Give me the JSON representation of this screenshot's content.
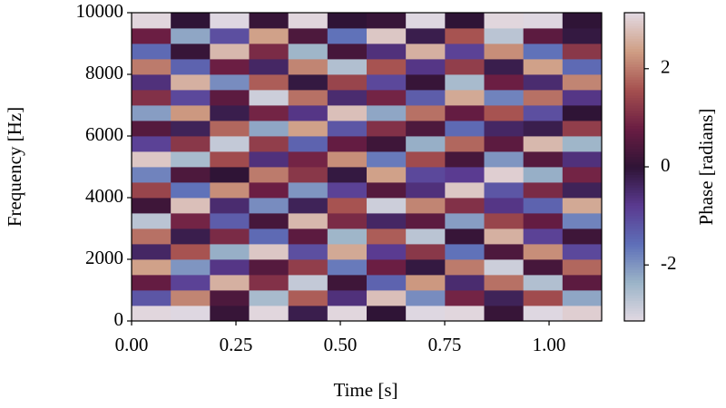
{
  "chart_data": {
    "type": "heatmap",
    "xlabel": "Time [s]",
    "ylabel": "Frequency [Hz]",
    "colorbar_label": "Phase [radians]",
    "xlim": [
      0,
      1.126
    ],
    "xticks": [
      {
        "value": 0,
        "label": "0.00"
      },
      {
        "value": 0.25,
        "label": "0.25"
      },
      {
        "value": 0.5,
        "label": "0.50"
      },
      {
        "value": 0.75,
        "label": "0.75"
      },
      {
        "value": 1,
        "label": "1.00"
      }
    ],
    "ylim": [
      0,
      10000
    ],
    "yticks": [
      0,
      2000,
      4000,
      6000,
      8000,
      10000
    ],
    "clim": [
      -3.14159,
      3.14159
    ],
    "cticks": [
      {
        "value": -2,
        "label": "-2"
      },
      0,
      2
    ],
    "colormap": [
      "#e2d9e2",
      "#9bb4c8",
      "#5e6fb8",
      "#5a3a90",
      "#2f1436",
      "#6a1d43",
      "#a5504f",
      "#cf9e84",
      "#e2d9e2"
    ],
    "z": [
      [
        3.1,
        -3.1,
        0.1,
        3.1,
        -0.2,
        3.1,
        0.0,
        -3.1,
        3.1,
        0.1,
        -3.1,
        3.0
      ],
      [
        -1.2,
        2.1,
        0.4,
        -2.5,
        1.7,
        -0.6,
        2.8,
        -1.9,
        0.9,
        -0.3,
        1.5,
        -2.2
      ],
      [
        0.7,
        -0.9,
        2.6,
        1.1,
        -2.8,
        0.2,
        -1.4,
        2.3,
        -0.5,
        1.9,
        -2.6,
        0.6
      ],
      [
        2.4,
        -2.0,
        -0.7,
        0.5,
        1.3,
        -1.7,
        0.8,
        -0.1,
        2.0,
        -2.9,
        0.3,
        1.8
      ],
      [
        -0.4,
        1.6,
        -2.3,
        2.9,
        -1.1,
        2.5,
        -0.8,
        1.2,
        -1.6,
        0.4,
        2.2,
        -1.0
      ],
      [
        1.9,
        -0.2,
        1.0,
        -1.5,
        0.6,
        -2.4,
        1.7,
        -2.7,
        0.1,
        2.6,
        -0.9,
        0.2
      ],
      [
        -2.7,
        0.9,
        -1.3,
        0.3,
        2.7,
        1.0,
        -0.4,
        0.6,
        -2.1,
        1.4,
        0.7,
        -1.8
      ],
      [
        0.2,
        2.8,
        -0.5,
        -1.9,
        -0.3,
        1.6,
        -2.9,
        2.1,
        1.1,
        -0.7,
        -1.4,
        2.5
      ],
      [
        1.4,
        -1.6,
        2.2,
        0.8,
        -2.0,
        -0.9,
        0.5,
        -0.6,
        2.9,
        -1.2,
        1.0,
        -0.3
      ],
      [
        -1.8,
        0.4,
        0.0,
        2.0,
        1.2,
        -0.1,
        2.4,
        -1.0,
        -0.8,
        3.0,
        -2.3,
        0.9
      ],
      [
        2.9,
        -2.5,
        1.5,
        -0.6,
        0.9,
        2.2,
        -1.7,
        1.5,
        0.3,
        -2.0,
        0.5,
        -0.6
      ],
      [
        -0.9,
        1.2,
        -2.8,
        1.3,
        -1.4,
        0.7,
        0.2,
        -2.3,
        1.8,
        0.6,
        2.7,
        -2.4
      ],
      [
        0.5,
        -0.3,
        1.8,
        -2.2,
        2.4,
        -1.2,
        1.1,
        0.4,
        -1.5,
        -0.4,
        -0.2,
        1.3
      ],
      [
        -2.1,
        2.3,
        -0.2,
        0.9,
        -0.7,
        2.8,
        -2.2,
        1.9,
        0.7,
        1.6,
        -1.1,
        0.0
      ],
      [
        1.1,
        -1.0,
        0.6,
        -2.9,
        1.9,
        -0.5,
        0.9,
        -1.3,
        2.5,
        -1.8,
        1.9,
        -0.7
      ],
      [
        -0.6,
        2.6,
        -1.9,
        1.7,
        -0.1,
        1.4,
        -1.0,
        0.1,
        -2.5,
        0.8,
        -0.5,
        2.1
      ],
      [
        2.0,
        -1.4,
        0.8,
        -0.4,
        2.1,
        -2.6,
        1.6,
        -0.7,
        1.3,
        -0.2,
        2.4,
        -1.5
      ],
      [
        -1.5,
        0.1,
        2.7,
        1.0,
        -2.4,
        0.3,
        -0.6,
        2.6,
        -0.9,
        2.2,
        -1.6,
        1.2
      ],
      [
        0.8,
        -2.2,
        -1.1,
        2.4,
        0.4,
        -1.6,
        2.9,
        -0.2,
        1.6,
        -2.7,
        0.6,
        -0.1
      ],
      [
        3.1,
        0.0,
        -3.1,
        0.1,
        3.1,
        0.0,
        0.1,
        -3.1,
        0.0,
        3.1,
        -3.1,
        0.0
      ]
    ]
  }
}
